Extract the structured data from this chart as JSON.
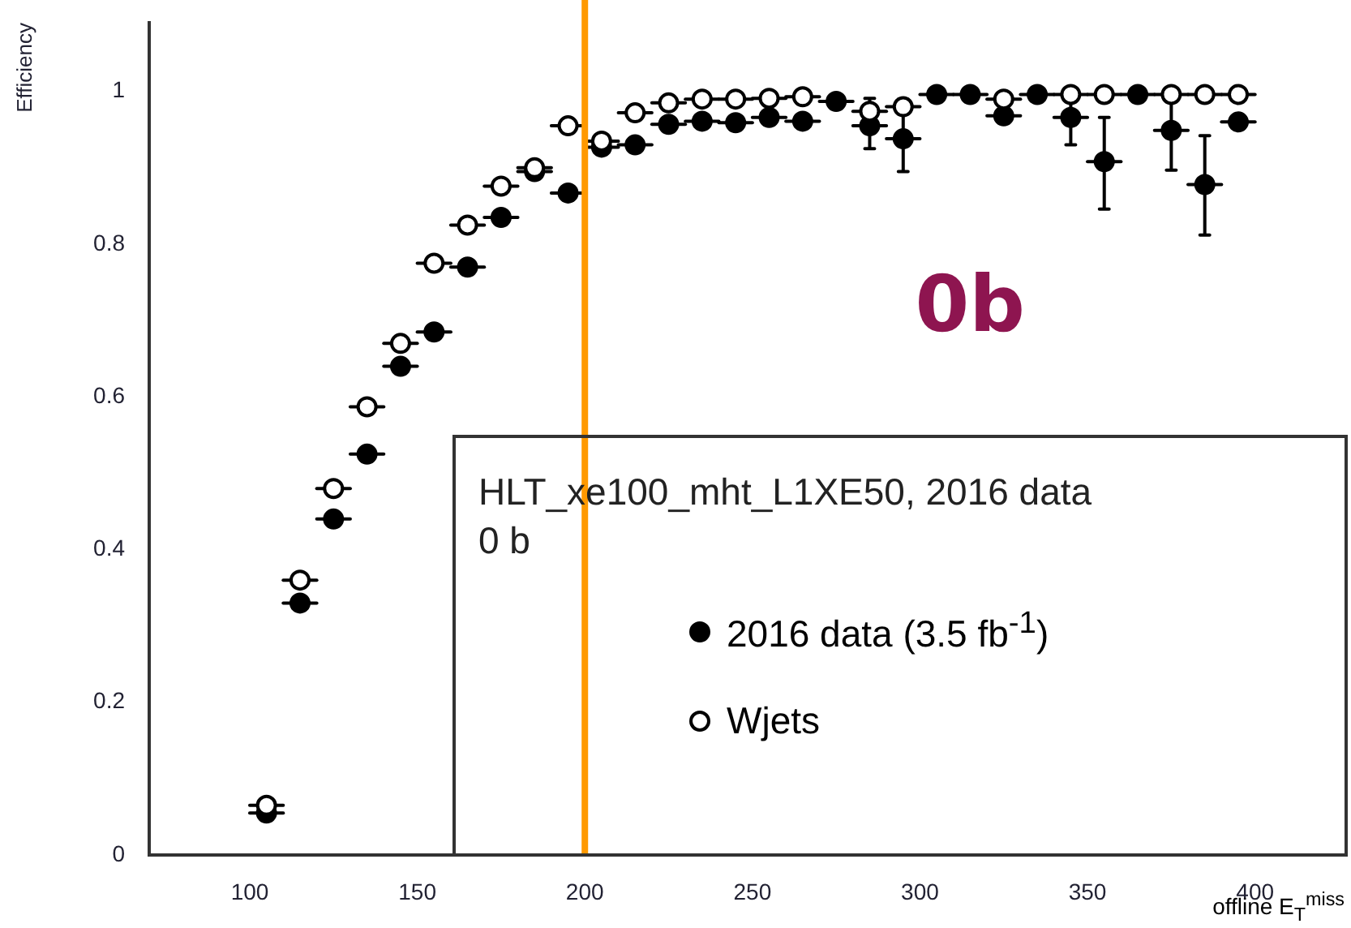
{
  "chart_data": {
    "type": "scatter",
    "xlabel": "offline E$_{T}$$^{miss}$",
    "ylabel": "Efficiency",
    "legend_title": "HLT_xe100_mht_L1XE50, 2016 data\n0 b",
    "annotations": [
      "0b"
    ],
    "xlim": [
      70,
      425
    ],
    "xticks": [
      100,
      150,
      200,
      250,
      300,
      350,
      400
    ],
    "ylim": [
      0,
      1.09
    ],
    "yticks": [
      0,
      0.2,
      0.4,
      0.6,
      0.8,
      1
    ],
    "grid": false,
    "legend": "bottom right",
    "marker": "circle",
    "x": [
      105,
      115,
      125,
      135,
      145,
      155,
      165,
      175,
      185,
      195,
      205,
      215,
      225,
      235,
      245,
      255,
      265,
      275,
      285,
      295,
      305,
      315,
      325,
      335,
      345,
      355,
      365,
      375,
      385,
      395
    ],
    "ref_lines": [
      {
        "axis": "x",
        "value": 200,
        "color": "#ff9900"
      }
    ],
    "series": [
      {
        "name": "Wjets",
        "color": "#000000",
        "values": [
          0.065,
          0.36,
          0.48,
          0.587,
          0.67,
          0.775,
          0.825,
          0.876,
          0.9,
          0.955,
          0.935,
          0.972,
          0.985,
          0.99,
          0.99,
          0.991,
          0.993,
          null,
          0.974,
          0.98,
          null,
          null,
          0.99,
          null,
          0.996,
          0.996,
          null,
          0.996,
          0.996,
          0.996
        ],
        "xerrors": [
          5,
          5,
          5,
          5,
          5,
          5,
          5,
          5,
          5,
          5,
          5,
          5,
          5,
          5,
          5,
          5,
          5,
          null,
          5,
          5,
          null,
          null,
          5,
          null,
          5,
          5,
          null,
          5,
          5,
          5
        ]
      },
      {
        "name": "2016 data (3.5 fb$^{-1}$)",
        "color": "#000000",
        "values": [
          0.055,
          0.33,
          0.44,
          0.525,
          0.64,
          0.685,
          0.77,
          0.835,
          0.895,
          0.867,
          0.927,
          0.93,
          0.957,
          0.961,
          0.959,
          0.966,
          0.961,
          0.987,
          0.955,
          0.938,
          0.996,
          0.996,
          0.968,
          0.996,
          0.966,
          0.908,
          0.996,
          0.949,
          0.878,
          0.96
        ],
        "xerrors": [
          5,
          5,
          5,
          5,
          5,
          5,
          5,
          5,
          5,
          5,
          5,
          5,
          5,
          5,
          5,
          5,
          5,
          5,
          5,
          5,
          5,
          5,
          5,
          5,
          5,
          5,
          5,
          5,
          5,
          5
        ],
        "errors": [
          null,
          null,
          null,
          null,
          null,
          null,
          null,
          null,
          null,
          null,
          null,
          null,
          null,
          null,
          null,
          null,
          null,
          null,
          [
            0.925,
            0.991
          ],
          [
            0.895,
            0.99
          ],
          null,
          null,
          null,
          null,
          [
            0.93,
            0.99
          ],
          [
            0.846,
            0.966
          ],
          null,
          [
            0.897,
            0.99
          ],
          [
            0.812,
            0.942
          ],
          null
        ]
      }
    ]
  }
}
